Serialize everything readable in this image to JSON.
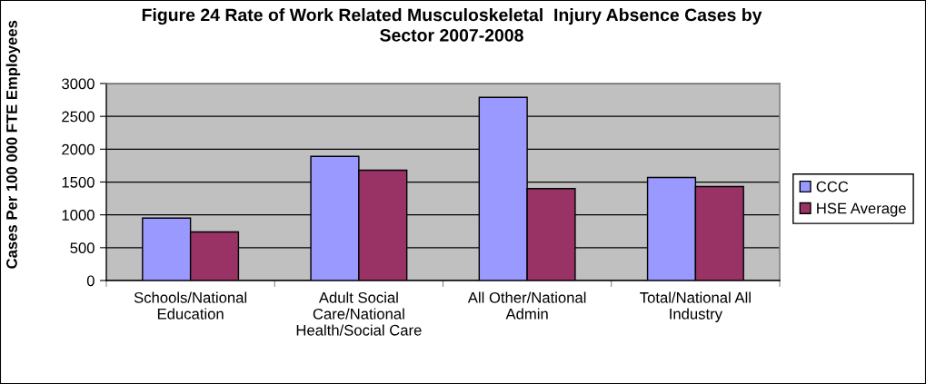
{
  "chart_data": {
    "type": "bar",
    "title": "Figure 24 Rate of Work Related Musculoskeletal  Injury Absence Cases by Sector 2007-2008",
    "ylabel": "Cases Per 100 000 FTE Employees",
    "categories": [
      "Schools/National Education",
      "Adult Social Care/National Health/Social Care",
      "All Other/National Admin",
      "Total/National All Industry"
    ],
    "series": [
      {
        "name": "CCC",
        "color": "#9999ff",
        "values": [
          950,
          1890,
          2790,
          1570
        ]
      },
      {
        "name": "HSE Average",
        "color": "#993366",
        "values": [
          740,
          1680,
          1400,
          1430
        ]
      }
    ],
    "ylim": [
      0,
      3000
    ],
    "yticks": [
      0,
      500,
      1000,
      1500,
      2000,
      2500,
      3000
    ],
    "grid": "y",
    "legend": "right"
  }
}
